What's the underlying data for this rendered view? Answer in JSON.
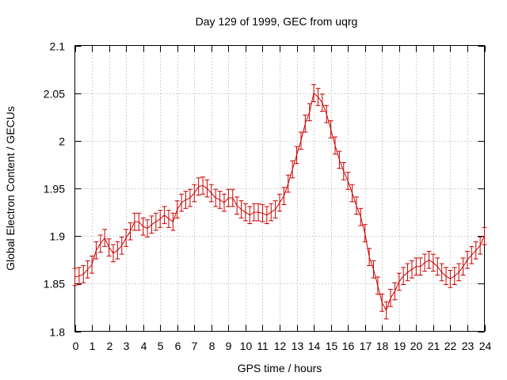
{
  "chart_data": {
    "type": "line",
    "title": "Day 129 of 1999, GEC from uqrg",
    "xlabel": "GPS time / hours",
    "ylabel": "Global Electron Content / GECUs",
    "xlim": [
      0,
      24
    ],
    "ylim": [
      1.8,
      2.1
    ],
    "xticks": [
      0,
      1,
      2,
      3,
      4,
      5,
      6,
      7,
      8,
      9,
      10,
      11,
      12,
      13,
      14,
      15,
      16,
      17,
      18,
      19,
      20,
      21,
      22,
      23,
      24
    ],
    "yticks": [
      1.8,
      1.85,
      1.9,
      1.95,
      2.0,
      2.05,
      2.1
    ],
    "ytick_labels": [
      "1.8",
      "1.85",
      "1.9",
      "1.95",
      "2",
      "2.05",
      "2.1"
    ],
    "grid": true,
    "series": [
      {
        "name": "GEC",
        "color": "#cc0000",
        "error": 0.009,
        "x": [
          0,
          0.25,
          0.5,
          0.75,
          1,
          1.25,
          1.5,
          1.75,
          2,
          2.25,
          2.5,
          2.75,
          3,
          3.25,
          3.5,
          3.75,
          4,
          4.25,
          4.5,
          4.75,
          5,
          5.25,
          5.5,
          5.75,
          6,
          6.25,
          6.5,
          6.75,
          7,
          7.25,
          7.5,
          7.75,
          8,
          8.25,
          8.5,
          8.75,
          9,
          9.25,
          9.5,
          9.75,
          10,
          10.25,
          10.5,
          10.75,
          11,
          11.25,
          11.5,
          11.75,
          12,
          12.25,
          12.5,
          12.75,
          13,
          13.25,
          13.5,
          13.75,
          14,
          14.25,
          14.5,
          14.75,
          15,
          15.25,
          15.5,
          15.75,
          16,
          16.25,
          16.5,
          16.75,
          17,
          17.25,
          17.5,
          17.75,
          18,
          18.25,
          18.5,
          18.75,
          19,
          19.25,
          19.5,
          19.75,
          20,
          20.25,
          20.5,
          20.75,
          21,
          21.25,
          21.5,
          21.75,
          22,
          22.25,
          22.5,
          22.75,
          23,
          23.25,
          23.5,
          23.75,
          24
        ],
        "y": [
          1.857,
          1.858,
          1.86,
          1.865,
          1.87,
          1.885,
          1.892,
          1.898,
          1.888,
          1.882,
          1.885,
          1.89,
          1.898,
          1.905,
          1.915,
          1.915,
          1.91,
          1.908,
          1.912,
          1.915,
          1.918,
          1.922,
          1.918,
          1.915,
          1.928,
          1.935,
          1.938,
          1.94,
          1.945,
          1.952,
          1.953,
          1.95,
          1.945,
          1.94,
          1.938,
          1.935,
          1.94,
          1.94,
          1.932,
          1.928,
          1.925,
          1.922,
          1.925,
          1.925,
          1.924,
          1.922,
          1.925,
          1.928,
          1.935,
          1.942,
          1.955,
          1.97,
          1.985,
          2.0,
          2.018,
          2.03,
          2.05,
          2.046,
          2.04,
          2.028,
          2.012,
          1.995,
          1.98,
          1.968,
          1.958,
          1.945,
          1.932,
          1.92,
          1.903,
          1.878,
          1.865,
          1.848,
          1.83,
          1.822,
          1.835,
          1.842,
          1.852,
          1.858,
          1.862,
          1.865,
          1.868,
          1.868,
          1.872,
          1.875,
          1.872,
          1.868,
          1.862,
          1.858,
          1.855,
          1.858,
          1.862,
          1.868,
          1.875,
          1.88,
          1.885,
          1.89,
          1.9
        ]
      }
    ]
  }
}
